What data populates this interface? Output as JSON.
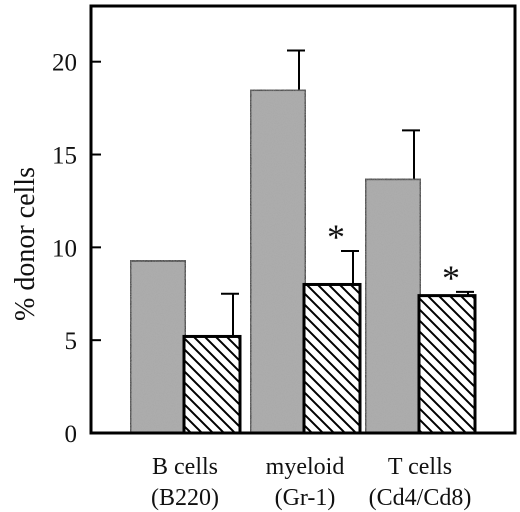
{
  "chart_data": {
    "type": "bar",
    "ylabel": "% donor cells",
    "xlabel": "",
    "ylim": [
      0,
      23
    ],
    "yticks": [
      0,
      5,
      10,
      15,
      20
    ],
    "grid": false,
    "legend": "none",
    "categories": [
      {
        "line1": "B cells",
        "line2": "(B220)"
      },
      {
        "line1": "myeloid",
        "line2": "(Gr-1)"
      },
      {
        "line1": "T cells",
        "line2": "(Cd4/Cd8)"
      }
    ],
    "series": [
      {
        "fill": "stipple-gray",
        "values": [
          9.3,
          18.5,
          13.7
        ],
        "errors": [
          null,
          2.1,
          2.6
        ]
      },
      {
        "fill": "diagonal-hatch",
        "values": [
          5.2,
          8.0,
          7.4
        ],
        "errors": [
          2.3,
          1.8,
          0.2
        ]
      }
    ],
    "annotations": [
      {
        "category_index": 1,
        "series_index": 1,
        "text": "*"
      },
      {
        "category_index": 2,
        "series_index": 1,
        "text": "*"
      }
    ],
    "colors": {
      "solid_bar": "#a9a9a9",
      "hatch_line": "#000000",
      "axis": "#000000"
    }
  }
}
